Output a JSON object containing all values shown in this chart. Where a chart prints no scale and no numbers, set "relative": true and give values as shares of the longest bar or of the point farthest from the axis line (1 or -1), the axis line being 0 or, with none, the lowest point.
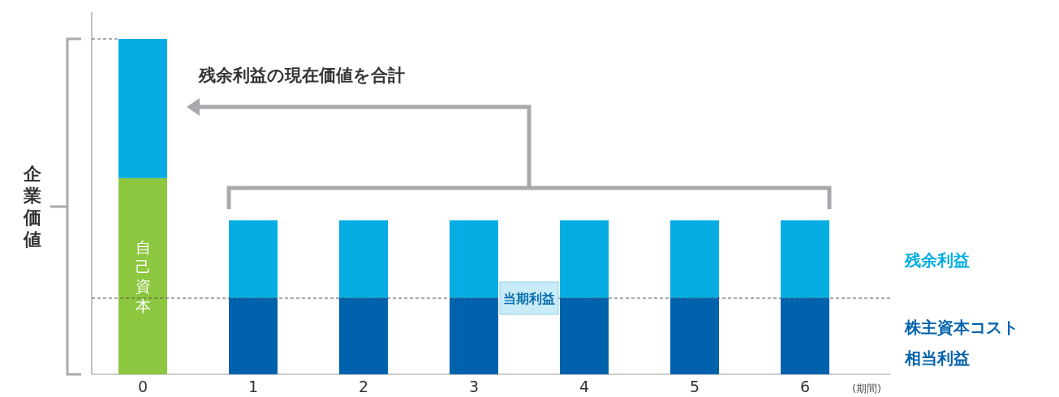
{
  "chart_data": {
    "type": "bar",
    "stacked": true,
    "relative": true,
    "categories": [
      "0",
      "1",
      "2",
      "3",
      "4",
      "5",
      "6"
    ],
    "xlabel": "(期間)",
    "ylabel": "企業価値",
    "annotations": [
      "残余利益の現在価値を合計"
    ],
    "legend": "right",
    "ref_lines": [
      {
        "axis": "y",
        "value": 0.227,
        "label": "当期利益",
        "color": "#555555",
        "line_style": "dashed"
      }
    ],
    "series": [
      {
        "name": "自己資本",
        "color": "#8dc63f",
        "values": [
          0.585,
          null,
          null,
          null,
          null,
          null,
          null
        ]
      },
      {
        "name": "株主資本コスト相当利益",
        "color": "#0062ad",
        "values": [
          null,
          0.227,
          0.227,
          0.227,
          0.227,
          0.227,
          0.227
        ]
      },
      {
        "name": "残余利益",
        "color": "#05ade3",
        "values": [
          0.415,
          0.232,
          0.232,
          0.232,
          0.232,
          0.232,
          0.232
        ]
      }
    ]
  }
}
